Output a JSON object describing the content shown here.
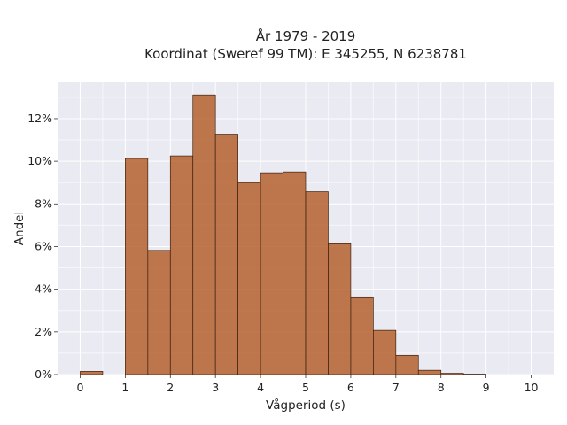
{
  "chart_data": {
    "type": "bar",
    "title": [
      "År 1979 - 2019",
      "Koordinat (Sweref 99 TM): E 345255, N 6238781"
    ],
    "xlabel": "Vågperiod (s)",
    "ylabel": "Andel",
    "xlim": [
      -0.5,
      10.5
    ],
    "ylim": [
      0,
      0.137
    ],
    "xticks": [
      0,
      1,
      2,
      3,
      4,
      5,
      6,
      7,
      8,
      9,
      10
    ],
    "yticks": [
      0,
      0.02,
      0.04,
      0.06,
      0.08,
      0.1,
      0.12
    ],
    "ytick_labels": [
      "0%",
      "2%",
      "4%",
      "6%",
      "8%",
      "10%",
      "12%"
    ],
    "bin_width": 0.5,
    "bins": [
      {
        "x0": 0.0,
        "value": 0.0015
      },
      {
        "x0": 1.0,
        "value": 0.1013
      },
      {
        "x0": 1.5,
        "value": 0.0582
      },
      {
        "x0": 2.0,
        "value": 0.1025
      },
      {
        "x0": 2.5,
        "value": 0.1311
      },
      {
        "x0": 3.0,
        "value": 0.1127
      },
      {
        "x0": 3.5,
        "value": 0.09
      },
      {
        "x0": 4.0,
        "value": 0.0946
      },
      {
        "x0": 4.5,
        "value": 0.095
      },
      {
        "x0": 5.0,
        "value": 0.0857
      },
      {
        "x0": 5.5,
        "value": 0.0613
      },
      {
        "x0": 6.0,
        "value": 0.0364
      },
      {
        "x0": 6.5,
        "value": 0.0207
      },
      {
        "x0": 7.0,
        "value": 0.009
      },
      {
        "x0": 7.5,
        "value": 0.002
      },
      {
        "x0": 8.0,
        "value": 0.0006
      },
      {
        "x0": 8.5,
        "value": 0.0002
      }
    ],
    "grid": true,
    "colors": {
      "bar": "#b5622e",
      "edge": "#3b2012",
      "background": "#eaeaf2"
    }
  }
}
